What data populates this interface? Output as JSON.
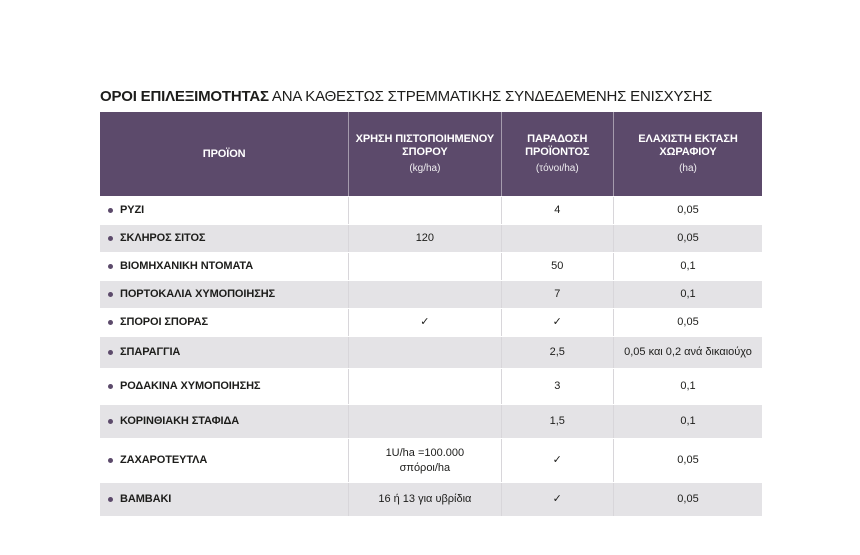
{
  "title": {
    "bold": "ΟΡΟΙ ΕΠΙΛΕΞΙΜΟΤΗΤΑΣ",
    "rest": " ΑΝΑ ΚΑΘΕΣΤΩΣ ΣΤΡΕΜΜΑΤΙΚΗΣ ΣΥΝΔΕΔΕΜΕΝΗΣ ΕΝΙΣΧΥΣΗΣ"
  },
  "colors": {
    "header_bg": "#5c4a6b",
    "header_text": "#ffffff",
    "row_bg": "#ffffff",
    "row_alt_bg": "#e4e3e6",
    "bullet": "#5c4a6b",
    "body_text": "#1d1d1b",
    "column_divider": "#d8d6da"
  },
  "chart_data": {
    "type": "table",
    "title": "ΟΡΟΙ ΕΠΙΛΕΞΙΜΟΤΗΤΑΣ ΑΝΑ ΚΑΘΕΣΤΩΣ ΣΤΡΕΜΜΑΤΙΚΗΣ ΣΥΝΔΕΔΕΜΕΝΗΣ ΕΝΙΣΧΥΣΗΣ",
    "columns": [
      {
        "key": "product",
        "label_lines": [
          "ΠΡΟΪΟΝ"
        ],
        "unit": ""
      },
      {
        "key": "seed",
        "label_lines": [
          "ΧΡΗΣΗ ΠΙΣΤΟΠΟΙΗΜΕΝΟΥ",
          "ΣΠΟΡΟΥ"
        ],
        "unit": "(kg/ha)"
      },
      {
        "key": "delivery",
        "label_lines": [
          "ΠΑΡΑΔΟΣΗ",
          "ΠΡΟΪΟΝΤΟΣ"
        ],
        "unit": "(τόνοι/ha)"
      },
      {
        "key": "area",
        "label_lines": [
          "ΕΛΑΧΙΣΤΗ ΕΚΤΑΣΗ",
          "ΧΩΡΑΦΙΟΥ"
        ],
        "unit": "(ha)"
      }
    ],
    "rows": [
      {
        "product": "ΡΥΖΙ",
        "seed": "",
        "delivery": "4",
        "area": "0,05"
      },
      {
        "product": "ΣΚΛΗΡΟΣ ΣΙΤΟΣ",
        "seed": "120",
        "delivery": "",
        "area": "0,05"
      },
      {
        "product": "ΒΙΟΜΗΧΑΝΙΚΗ ΝΤΟΜΑΤΑ",
        "seed": "",
        "delivery": "50",
        "area": "0,1"
      },
      {
        "product": "ΠΟΡΤΟΚΑΛΙΑ ΧΥΜΟΠΟΙΗΣΗΣ",
        "seed": "",
        "delivery": "7",
        "area": "0,1"
      },
      {
        "product": "ΣΠΟΡΟΙ ΣΠΟΡΑΣ",
        "seed": "✓",
        "delivery": "✓",
        "area": "0,05"
      },
      {
        "product": "ΣΠΑΡΑΓΓΙΑ",
        "seed": "",
        "delivery": "2,5",
        "area": "0,05 και 0,2 ανά δικαιούχο"
      },
      {
        "product": "ΡΟΔΑΚΙΝΑ ΧΥΜΟΠΟΙΗΣΗΣ",
        "seed": "",
        "delivery": "3",
        "area": "0,1"
      },
      {
        "product": "ΚΟΡΙΝΘΙΑΚΗ ΣΤΑΦΙΔΑ",
        "seed": "",
        "delivery": "1,5",
        "area": "0,1"
      },
      {
        "product": "ΖΑΧΑΡΟΤΕΥΤΛΑ",
        "seed": "1U/ha =100.000\nσπόροι/ha",
        "delivery": "✓",
        "area": "0,05"
      },
      {
        "product": "ΒΑΜΒΑΚΙ",
        "seed": "16 ή 13 για υβρίδια",
        "delivery": "✓",
        "area": "0,05"
      }
    ]
  }
}
